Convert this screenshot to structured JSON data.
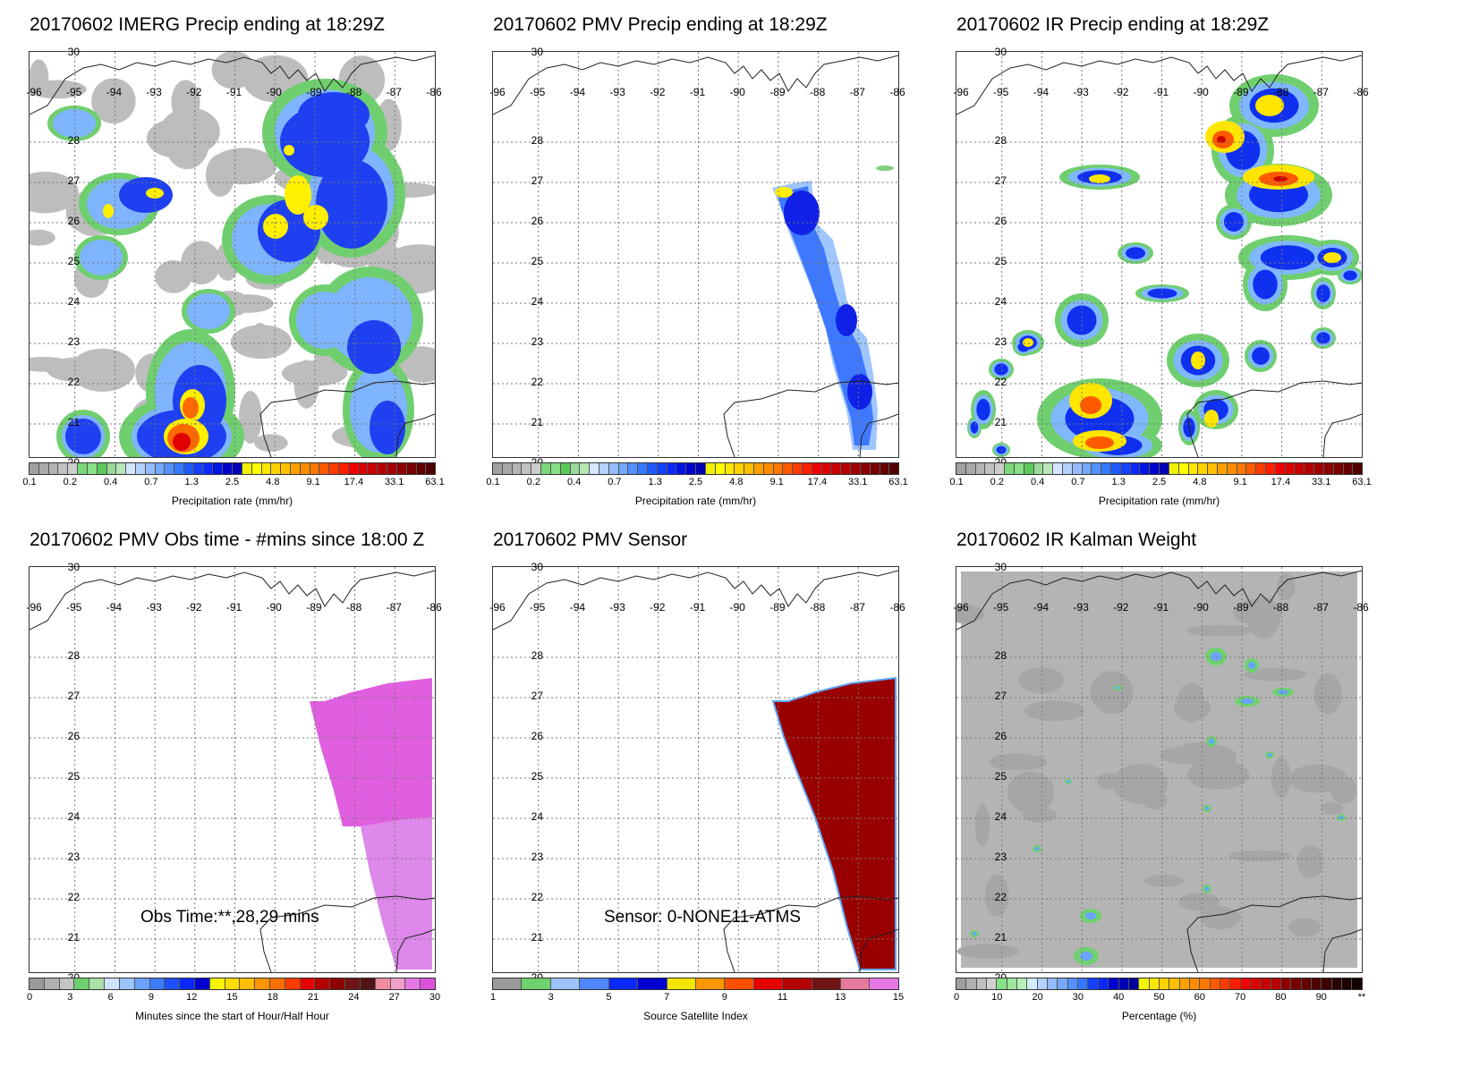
{
  "panels": [
    {
      "title": "20170602 IMERG Precip ending at 18:29Z",
      "cbar": "precip",
      "label": "Precipitation rate (mm/hr)",
      "field": "imerg"
    },
    {
      "title": "20170602 PMV Precip ending at 18:29Z",
      "cbar": "precip",
      "label": "Precipitation rate (mm/hr)",
      "field": "pmv"
    },
    {
      "title": "20170602 IR Precip ending at 18:29Z",
      "cbar": "precip",
      "label": "Precipitation rate (mm/hr)",
      "field": "ir"
    },
    {
      "title": "20170602 PMV Obs time - #mins since 18:00 Z",
      "cbar": "time",
      "label": "Minutes since the start of Hour/Half Hour",
      "field": "obstime",
      "annotation": "Obs Time:**,28,29 mins"
    },
    {
      "title": "20170602 PMV Sensor",
      "cbar": "sensor",
      "label": "Source Satellite Index",
      "field": "sensor",
      "annotation": "Sensor:  0-NONE11-ATMS"
    },
    {
      "title": "20170602 IR Kalman Weight",
      "cbar": "pct",
      "label": "Percentage (%)",
      "field": "kalman"
    }
  ],
  "map": {
    "lat_labels": [
      "30",
      "28",
      "27",
      "26",
      "25",
      "24",
      "23",
      "22",
      "21",
      "20"
    ],
    "lon_labels": [
      "-96",
      "-95",
      "-94",
      "-93",
      "-92",
      "-91",
      "-90",
      "-89",
      "-88",
      "-87",
      "-86"
    ]
  },
  "colorbars": {
    "precip": {
      "colors": [
        "#a0a0a0",
        "#a8a8a8",
        "#b4b4b4",
        "#c0c0c0",
        "#cccccc",
        "#7ad77a",
        "#86e086",
        "#5cc85c",
        "#9ad89a",
        "#b6e6b6",
        "#d4e6ff",
        "#b4d2ff",
        "#94bcff",
        "#74a8ff",
        "#5490ff",
        "#3478ff",
        "#1e5aff",
        "#1440ff",
        "#0a28ff",
        "#0014e6",
        "#0000cc",
        "#0000b4",
        "#f0f000",
        "#ffff00",
        "#ffe600",
        "#ffd200",
        "#ffbe00",
        "#ffa000",
        "#ff8c00",
        "#ff7800",
        "#ff5a00",
        "#ff3c00",
        "#ff1e00",
        "#f00000",
        "#dc0000",
        "#c80000",
        "#b40000",
        "#a00000",
        "#8c0000",
        "#780000",
        "#640000",
        "#500000"
      ],
      "ticks": [
        "0.1",
        "0.2",
        "0.4",
        "0.7",
        "1.3",
        "2.5",
        "4.8",
        "9.1",
        "17.4",
        "33.1",
        "63.1"
      ]
    },
    "time": {
      "colors": [
        "#9a9a9a",
        "#b0b0b0",
        "#c4c4c4",
        "#6dd16d",
        "#a8e0a8",
        "#cfe3ff",
        "#9cc4ff",
        "#6aa2ff",
        "#3c7cff",
        "#1e50ff",
        "#0a28ff",
        "#0000d2",
        "#f5f500",
        "#ffdc00",
        "#ffbe00",
        "#ff9600",
        "#ff6e00",
        "#ff3c00",
        "#e60000",
        "#b40000",
        "#8c0000",
        "#6e1414",
        "#501414",
        "#f08ca0",
        "#f0a0c8",
        "#e678e6",
        "#dc50dc"
      ],
      "ticks": [
        "0",
        "3",
        "6",
        "9",
        "12",
        "15",
        "18",
        "21",
        "24",
        "27",
        "30"
      ]
    },
    "sensor": {
      "colors": [
        "#9a9a9a",
        "#6dd16d",
        "#9cc4ff",
        "#4f86ff",
        "#0a28ff",
        "#0000d2",
        "#f5e600",
        "#ff9600",
        "#ff5000",
        "#e60000",
        "#b40000",
        "#6e1414",
        "#e67a9a",
        "#e678e6"
      ],
      "ticks": [
        "1",
        "3",
        "5",
        "7",
        "9",
        "11",
        "13",
        "15"
      ]
    },
    "pct": {
      "colors": [
        "#a0a0a0",
        "#b0b0b0",
        "#c0c0c0",
        "#d0d0d0",
        "#86e086",
        "#9ee89e",
        "#b6efb6",
        "#d4ecff",
        "#b4d2ff",
        "#94bcff",
        "#74a8ff",
        "#5490ff",
        "#3478ff",
        "#1440ff",
        "#0a28ff",
        "#0000d2",
        "#0000b4",
        "#0000a0",
        "#f5f500",
        "#ffe600",
        "#ffd200",
        "#ffbe00",
        "#ffa000",
        "#ff8c00",
        "#ff7800",
        "#ff5a00",
        "#ff3c00",
        "#ff1e00",
        "#f00000",
        "#dc0000",
        "#c80000",
        "#b40000",
        "#8c0000",
        "#780000",
        "#640000",
        "#500000",
        "#3c0000",
        "#280000",
        "#1e0000",
        "#140000"
      ],
      "ticks": [
        "0",
        "10",
        "20",
        "30",
        "40",
        "50",
        "60",
        "70",
        "80",
        "90",
        "**"
      ]
    }
  },
  "chart_data": [
    {
      "type": "heatmap",
      "title": "20170602 IMERG Precip ending at 18:29Z",
      "xlabel": "",
      "ylabel": "",
      "colorbar_label": "Precipitation rate (mm/hr)",
      "xlim": [
        -96,
        -86
      ],
      "ylim": [
        20,
        30
      ]
    },
    {
      "type": "heatmap",
      "title": "20170602 PMV Precip ending at 18:29Z",
      "xlabel": "",
      "ylabel": "",
      "colorbar_label": "Precipitation rate (mm/hr)",
      "xlim": [
        -96,
        -86
      ],
      "ylim": [
        20,
        30
      ]
    },
    {
      "type": "heatmap",
      "title": "20170602 IR Precip ending at 18:29Z",
      "xlabel": "",
      "ylabel": "",
      "colorbar_label": "Precipitation rate (mm/hr)",
      "xlim": [
        -96,
        -86
      ],
      "ylim": [
        20,
        30
      ]
    },
    {
      "type": "heatmap",
      "title": "20170602 PMV Obs time - #mins since 18:00 Z",
      "colorbar_label": "Minutes since the start of Hour/Half Hour",
      "xlim": [
        -96,
        -86
      ],
      "ylim": [
        20,
        30
      ],
      "values_present": [
        28,
        29
      ]
    },
    {
      "type": "heatmap",
      "title": "20170602 PMV Sensor",
      "colorbar_label": "Source Satellite Index",
      "xlim": [
        -96,
        -86
      ],
      "ylim": [
        20,
        30
      ],
      "values_present": [
        11
      ]
    },
    {
      "type": "heatmap",
      "title": "20170602 IR Kalman Weight",
      "colorbar_label": "Percentage (%)",
      "xlim": [
        -96,
        -86
      ],
      "ylim": [
        20,
        30
      ]
    }
  ]
}
